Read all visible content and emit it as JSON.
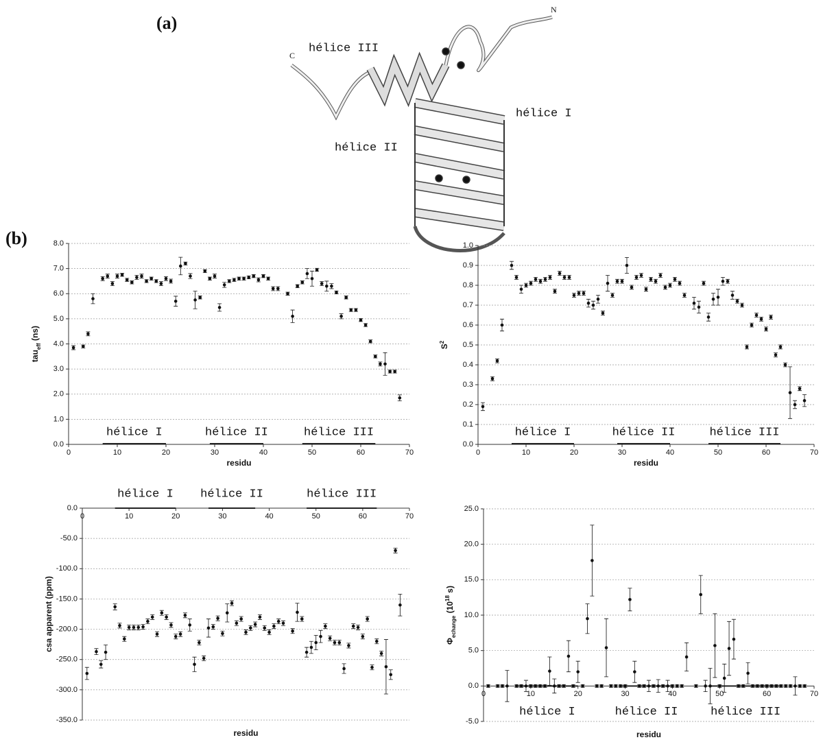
{
  "figure": {
    "panel_a": "(a)",
    "panel_b": "(b)",
    "diagram_labels": {
      "helix_3": "hélice III",
      "helix_2": "hélice II",
      "helix_1": "hélice I",
      "n_term": "N",
      "c_term": "C"
    }
  },
  "chart_data": [
    {
      "type": "scatter",
      "color": "#111111",
      "grid": true,
      "x": [
        1,
        3,
        4,
        5,
        7,
        8,
        9,
        10,
        11,
        12,
        13,
        14,
        15,
        16,
        17,
        18,
        19,
        20,
        21,
        22,
        23,
        24,
        25,
        26,
        27,
        28,
        29,
        30,
        31,
        32,
        33,
        34,
        35,
        36,
        37,
        38,
        39,
        40,
        41,
        42,
        43,
        45,
        46,
        47,
        48,
        49,
        50,
        51,
        52,
        53,
        54,
        55,
        56,
        57,
        58,
        59,
        60,
        61,
        62,
        63,
        64,
        65,
        66,
        67,
        68
      ],
      "values": [
        3.85,
        3.9,
        4.4,
        5.8,
        6.6,
        6.7,
        6.4,
        6.7,
        6.75,
        6.55,
        6.45,
        6.65,
        6.7,
        6.5,
        6.6,
        6.5,
        6.4,
        6.6,
        6.5,
        5.7,
        7.1,
        7.2,
        6.7,
        5.75,
        5.85,
        6.9,
        6.6,
        6.7,
        5.45,
        6.35,
        6.5,
        6.55,
        6.6,
        6.6,
        6.65,
        6.7,
        6.55,
        6.7,
        6.6,
        6.2,
        6.2,
        6.0,
        5.1,
        6.3,
        6.45,
        6.8,
        6.6,
        6.95,
        6.4,
        6.3,
        6.3,
        6.05,
        5.1,
        5.85,
        5.35,
        5.35,
        4.95,
        4.75,
        4.1,
        3.5,
        3.2,
        3.2,
        2.9,
        2.9,
        1.85
      ],
      "errors": [
        0.08,
        0.06,
        0.08,
        0.2,
        0.08,
        0.08,
        0.08,
        0.08,
        0.06,
        0.06,
        0.06,
        0.08,
        0.08,
        0.06,
        0.06,
        0.06,
        0.08,
        0.08,
        0.08,
        0.2,
        0.35,
        0.06,
        0.1,
        0.35,
        0.06,
        0.06,
        0.06,
        0.08,
        0.15,
        0.1,
        0.06,
        0.06,
        0.06,
        0.06,
        0.06,
        0.06,
        0.08,
        0.06,
        0.06,
        0.08,
        0.08,
        0.06,
        0.25,
        0.06,
        0.06,
        0.2,
        0.3,
        0.06,
        0.08,
        0.2,
        0.1,
        0.06,
        0.1,
        0.06,
        0.06,
        0.06,
        0.06,
        0.06,
        0.06,
        0.06,
        0.08,
        0.45,
        0.06,
        0.06,
        0.12
      ],
      "xlim": [
        0,
        70
      ],
      "xticks": [
        0,
        10,
        20,
        30,
        40,
        50,
        60,
        70
      ],
      "ylim": [
        0,
        8
      ],
      "yticks": [
        {
          "value": 0,
          "label": "0.0"
        },
        {
          "value": 1,
          "label": "1.0"
        },
        {
          "value": 2,
          "label": "2.0"
        },
        {
          "value": 3,
          "label": "3.0"
        },
        {
          "value": 4,
          "label": "4.0"
        },
        {
          "value": 5,
          "label": "5.0"
        },
        {
          "value": 6,
          "label": "6.0"
        },
        {
          "value": 7,
          "label": "7.0"
        },
        {
          "value": 8,
          "label": "8.0"
        }
      ],
      "xlabel": "residu",
      "ylabel": [
        {
          "text": "tau"
        },
        {
          "text": "eff",
          "shift": "sub"
        },
        {
          "text": " (ns)"
        }
      ],
      "annotations": [
        {
          "text": "hélice I",
          "range": [
            7,
            20
          ]
        },
        {
          "text": "hélice II",
          "range": [
            29,
            40
          ]
        },
        {
          "text": "hélice III",
          "range": [
            48,
            63
          ]
        }
      ]
    },
    {
      "type": "scatter",
      "color": "#111111",
      "grid": true,
      "x": [
        1,
        3,
        4,
        5,
        7,
        8,
        9,
        10,
        11,
        12,
        13,
        14,
        15,
        16,
        17,
        18,
        19,
        20,
        21,
        22,
        23,
        24,
        25,
        26,
        27,
        28,
        29,
        30,
        31,
        32,
        33,
        34,
        35,
        36,
        37,
        38,
        39,
        40,
        41,
        42,
        43,
        45,
        46,
        47,
        48,
        49,
        50,
        51,
        52,
        53,
        54,
        55,
        56,
        57,
        58,
        59,
        60,
        61,
        62,
        63,
        64,
        65,
        66,
        67,
        68
      ],
      "values": [
        0.19,
        0.33,
        0.42,
        0.6,
        0.9,
        0.84,
        0.78,
        0.8,
        0.81,
        0.83,
        0.82,
        0.83,
        0.84,
        0.77,
        0.86,
        0.84,
        0.84,
        0.75,
        0.76,
        0.76,
        0.71,
        0.7,
        0.73,
        0.66,
        0.81,
        0.75,
        0.82,
        0.82,
        0.9,
        0.79,
        0.84,
        0.85,
        0.78,
        0.83,
        0.82,
        0.85,
        0.79,
        0.8,
        0.83,
        0.81,
        0.75,
        0.71,
        0.69,
        0.81,
        0.64,
        0.73,
        0.74,
        0.82,
        0.82,
        0.75,
        0.72,
        0.7,
        0.49,
        0.6,
        0.65,
        0.63,
        0.58,
        0.64,
        0.45,
        0.49,
        0.4,
        0.26,
        0.2,
        0.28,
        0.22
      ],
      "errors": [
        0.02,
        0.01,
        0.01,
        0.03,
        0.02,
        0.01,
        0.02,
        0.01,
        0.01,
        0.01,
        0.01,
        0.01,
        0.01,
        0.01,
        0.01,
        0.01,
        0.01,
        0.01,
        0.01,
        0.01,
        0.02,
        0.02,
        0.02,
        0.01,
        0.04,
        0.01,
        0.01,
        0.01,
        0.04,
        0.01,
        0.01,
        0.01,
        0.01,
        0.01,
        0.01,
        0.01,
        0.01,
        0.01,
        0.01,
        0.01,
        0.01,
        0.03,
        0.03,
        0.01,
        0.02,
        0.03,
        0.04,
        0.02,
        0.01,
        0.02,
        0.01,
        0.01,
        0.01,
        0.01,
        0.01,
        0.01,
        0.01,
        0.01,
        0.01,
        0.01,
        0.01,
        0.13,
        0.02,
        0.01,
        0.03
      ],
      "xlim": [
        0,
        70
      ],
      "xticks": [
        0,
        10,
        20,
        30,
        40,
        50,
        60,
        70
      ],
      "ylim": [
        0,
        1
      ],
      "yticks": [
        {
          "value": 0,
          "label": "0.0"
        },
        {
          "value": 0.1,
          "label": "0.1"
        },
        {
          "value": 0.2,
          "label": "0.2"
        },
        {
          "value": 0.3,
          "label": "0.3"
        },
        {
          "value": 0.4,
          "label": "0.4"
        },
        {
          "value": 0.5,
          "label": "0.5"
        },
        {
          "value": 0.6,
          "label": "0.6"
        },
        {
          "value": 0.7,
          "label": "0.7"
        },
        {
          "value": 0.8,
          "label": "0.8"
        },
        {
          "value": 0.9,
          "label": "0.9"
        },
        {
          "value": 1,
          "label": "1.0"
        }
      ],
      "xlabel": "residu",
      "ylabel": [
        {
          "text": "S"
        },
        {
          "text": "2",
          "shift": "super"
        }
      ],
      "annotations": [
        {
          "text": "hélice I",
          "range": [
            7,
            20
          ]
        },
        {
          "text": "hélice II",
          "range": [
            29,
            40
          ]
        },
        {
          "text": "hélice III",
          "range": [
            48,
            63
          ]
        }
      ]
    },
    {
      "type": "scatter",
      "color": "#111111",
      "grid": true,
      "x": [
        1,
        3,
        4,
        5,
        7,
        8,
        9,
        10,
        11,
        12,
        13,
        14,
        15,
        16,
        17,
        18,
        19,
        20,
        21,
        22,
        23,
        24,
        25,
        26,
        27,
        28,
        29,
        30,
        31,
        32,
        33,
        34,
        35,
        36,
        37,
        38,
        39,
        40,
        41,
        42,
        43,
        45,
        46,
        47,
        48,
        49,
        50,
        51,
        52,
        53,
        54,
        55,
        56,
        57,
        58,
        59,
        60,
        61,
        62,
        63,
        64,
        65,
        66,
        67,
        68
      ],
      "values": [
        -273,
        -237,
        -258,
        -238,
        -163,
        -194,
        -216,
        -197,
        -197,
        -197,
        -196,
        -187,
        -180,
        -208,
        -173,
        -180,
        -193,
        -212,
        -208,
        -177,
        -193,
        -258,
        -222,
        -248,
        -198,
        -196,
        -182,
        -207,
        -173,
        -157,
        -190,
        -183,
        -205,
        -198,
        -192,
        -180,
        -198,
        -205,
        -195,
        -187,
        -190,
        -203,
        -172,
        -183,
        -238,
        -230,
        -222,
        -212,
        -195,
        -215,
        -222,
        -222,
        -265,
        -227,
        -195,
        -197,
        -212,
        -183,
        -263,
        -220,
        -240,
        -262,
        -275,
        -70,
        -160
      ],
      "errors": [
        10,
        5,
        6,
        12,
        5,
        4,
        4,
        4,
        4,
        4,
        4,
        4,
        4,
        4,
        4,
        4,
        4,
        4,
        4,
        4,
        10,
        12,
        4,
        4,
        15,
        4,
        4,
        4,
        15,
        4,
        4,
        4,
        4,
        4,
        4,
        4,
        4,
        4,
        4,
        4,
        4,
        4,
        15,
        4,
        8,
        10,
        12,
        10,
        4,
        4,
        4,
        4,
        8,
        4,
        4,
        4,
        4,
        4,
        4,
        4,
        4,
        45,
        8,
        4,
        18
      ],
      "xlim": [
        0,
        70
      ],
      "xticks": [
        0,
        10,
        20,
        30,
        40,
        50,
        60,
        70
      ],
      "ylim": [
        -350,
        0
      ],
      "yticks": [
        {
          "value": -350,
          "label": "-350.0"
        },
        {
          "value": -300,
          "label": "-300.0"
        },
        {
          "value": -250,
          "label": "-250.0"
        },
        {
          "value": -200,
          "label": "-200.0"
        },
        {
          "value": -150,
          "label": "-150.0"
        },
        {
          "value": -100,
          "label": "-100.0"
        },
        {
          "value": -50,
          "label": "-50.0"
        },
        {
          "value": 0,
          "label": "0.0"
        }
      ],
      "xlabel": "residu",
      "ylabel": [
        {
          "text": "csa apparent (ppm)"
        }
      ],
      "annotations": [
        {
          "text": "hélice I",
          "range": [
            7,
            20
          ]
        },
        {
          "text": "hélice II",
          "range": [
            27,
            37
          ]
        },
        {
          "text": "hélice III",
          "range": [
            48,
            63
          ]
        }
      ]
    },
    {
      "type": "scatter",
      "color": "#111111",
      "grid": true,
      "x": [
        1,
        3,
        4,
        5,
        7,
        8,
        9,
        10,
        11,
        12,
        13,
        14,
        15,
        16,
        17,
        18,
        19,
        20,
        21,
        22,
        23,
        24,
        25,
        26,
        27,
        28,
        29,
        30,
        31,
        32,
        33,
        34,
        35,
        36,
        37,
        38,
        39,
        40,
        41,
        42,
        43,
        45,
        46,
        47,
        48,
        49,
        50,
        51,
        52,
        53,
        54,
        55,
        56,
        57,
        58,
        59,
        60,
        61,
        62,
        63,
        64,
        65,
        66,
        67,
        68
      ],
      "values": [
        0,
        0,
        0,
        0,
        0,
        0,
        0,
        0,
        0,
        0,
        0,
        2.1,
        0,
        0,
        0,
        4.2,
        0,
        2.0,
        0,
        9.5,
        17.7,
        0,
        0,
        5.4,
        0,
        0,
        0,
        0,
        12.2,
        2.0,
        0,
        0,
        0,
        0,
        0,
        0,
        0,
        0,
        0,
        0,
        4.1,
        0,
        12.9,
        0,
        0,
        5.7,
        0,
        1.1,
        5.3,
        6.6,
        0,
        0,
        1.8,
        0,
        0,
        0,
        0,
        0,
        0,
        0,
        0,
        0,
        0,
        0,
        0
      ],
      "errors": [
        0.2,
        0.2,
        0.2,
        2.2,
        0.2,
        0.2,
        0.8,
        0.2,
        0.2,
        0.2,
        0.2,
        2.0,
        1.0,
        0.2,
        0.2,
        2.2,
        0.2,
        1.5,
        0.2,
        2.1,
        5.0,
        0.2,
        0.2,
        4.1,
        0.2,
        0.2,
        0.2,
        0.2,
        1.6,
        1.5,
        0.2,
        0.2,
        0.8,
        0.2,
        0.9,
        0.2,
        0.8,
        0.2,
        0.2,
        0.2,
        2.0,
        0.2,
        2.7,
        0.8,
        2.5,
        4.5,
        0.2,
        2.0,
        3.8,
        2.8,
        0.2,
        0.2,
        1.5,
        0.2,
        0.2,
        0.2,
        0.2,
        0.2,
        0.2,
        0.2,
        0.2,
        0.2,
        1.3,
        0.2,
        0.2
      ],
      "xlim": [
        0,
        70
      ],
      "xticks": [
        0,
        10,
        20,
        30,
        40,
        50,
        60,
        70
      ],
      "ylim": [
        -5,
        25
      ],
      "yticks": [
        {
          "value": -5,
          "label": "-5.0"
        },
        {
          "value": 0,
          "label": "0.0"
        },
        {
          "value": 5,
          "label": "5.0"
        },
        {
          "value": 10,
          "label": "10.0"
        },
        {
          "value": 15,
          "label": "15.0"
        },
        {
          "value": 20,
          "label": "20.0"
        },
        {
          "value": 25,
          "label": "25.0"
        }
      ],
      "xlabel": "residu",
      "ylabel": [
        {
          "text": "Φ"
        },
        {
          "text": "echange",
          "shift": "sub"
        },
        {
          "text": " (10"
        },
        {
          "text": "18",
          "shift": "super"
        },
        {
          "text": " s)"
        }
      ],
      "annotations": [
        {
          "text": "hélice I",
          "range": [
            7,
            20
          ]
        },
        {
          "text": "hélice II",
          "range": [
            29,
            40
          ]
        },
        {
          "text": "hélice III",
          "range": [
            48,
            63
          ]
        }
      ]
    }
  ]
}
